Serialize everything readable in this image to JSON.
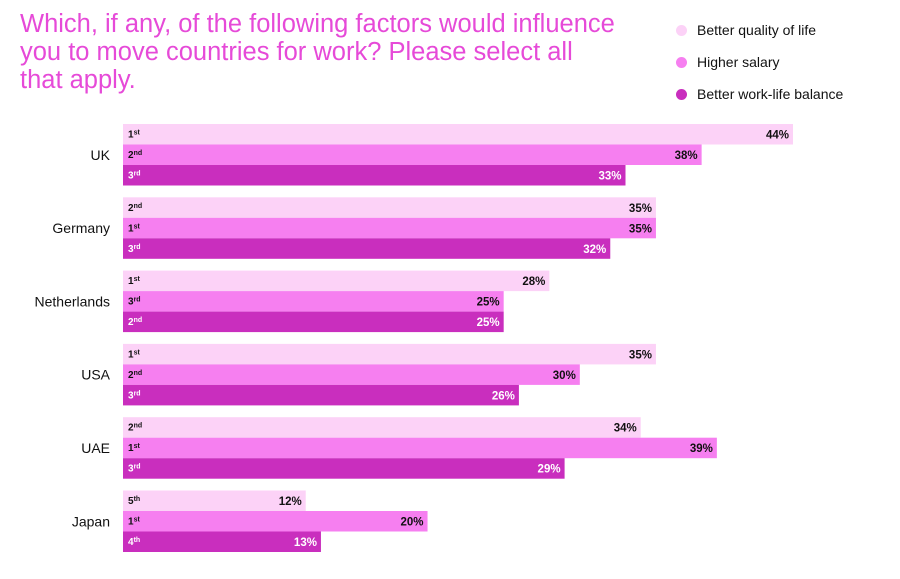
{
  "chart_data": {
    "type": "bar",
    "orientation": "horizontal",
    "title": "Which, if any, of the following factors would influence you to move countries for work? Please select all that apply.",
    "xlabel": "",
    "ylabel": "",
    "xlim": [
      0,
      44
    ],
    "grid": false,
    "legend_position": "top-right",
    "title_color": "#e64ad8",
    "categories": [
      "UK",
      "Germany",
      "Netherlands",
      "USA",
      "UAE",
      "Japan"
    ],
    "series": [
      {
        "name": "Better quality of life",
        "color": "#fcd2f7",
        "label_color": "#111111",
        "values": [
          44,
          35,
          28,
          35,
          34,
          12
        ],
        "value_labels": [
          "44%",
          "35%",
          "28%",
          "35%",
          "34%",
          "12%"
        ],
        "ranks": [
          {
            "num": "1",
            "suffix": "st"
          },
          {
            "num": "2",
            "suffix": "nd"
          },
          {
            "num": "1",
            "suffix": "st"
          },
          {
            "num": "1",
            "suffix": "st"
          },
          {
            "num": "2",
            "suffix": "nd"
          },
          {
            "num": "5",
            "suffix": "th"
          }
        ]
      },
      {
        "name": "Higher salary",
        "color": "#f67ff0",
        "label_color": "#111111",
        "values": [
          38,
          35,
          25,
          30,
          39,
          20
        ],
        "value_labels": [
          "38%",
          "35%",
          "25%",
          "30%",
          "39%",
          "20%"
        ],
        "ranks": [
          {
            "num": "2",
            "suffix": "nd"
          },
          {
            "num": "1",
            "suffix": "st"
          },
          {
            "num": "3",
            "suffix": "rd"
          },
          {
            "num": "2",
            "suffix": "nd"
          },
          {
            "num": "1",
            "suffix": "st"
          },
          {
            "num": "1",
            "suffix": "st"
          }
        ]
      },
      {
        "name": "Better work-life balance",
        "color": "#c92ebe",
        "label_color": "#ffffff",
        "values": [
          33,
          32,
          25,
          26,
          29,
          13
        ],
        "value_labels": [
          "33%",
          "32%",
          "25%",
          "26%",
          "29%",
          "13%"
        ],
        "ranks": [
          {
            "num": "3",
            "suffix": "rd"
          },
          {
            "num": "3",
            "suffix": "rd"
          },
          {
            "num": "2",
            "suffix": "nd"
          },
          {
            "num": "3",
            "suffix": "rd"
          },
          {
            "num": "3",
            "suffix": "rd"
          },
          {
            "num": "4",
            "suffix": "th"
          }
        ]
      }
    ]
  }
}
